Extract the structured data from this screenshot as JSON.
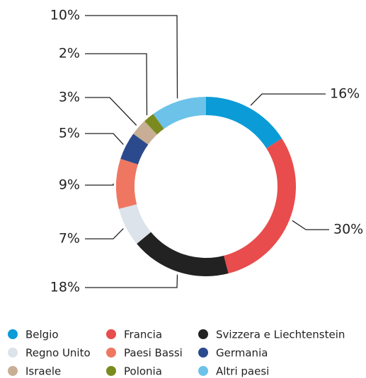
{
  "chart_data": {
    "type": "pie",
    "donut": true,
    "categories": [
      "Belgio",
      "Francia",
      "Svizzera e Liechtenstein",
      "Regno Unito",
      "Paesi Bassi",
      "Germania",
      "Israele",
      "Polonia",
      "Altri paesi"
    ],
    "values": [
      16,
      30,
      18,
      7,
      9,
      5,
      3,
      2,
      10
    ],
    "value_labels": [
      "16%",
      "30%",
      "18%",
      "7%",
      "9%",
      "5%",
      "3%",
      "2%",
      "10%"
    ],
    "colors": [
      "#0b9bd7",
      "#e84c4c",
      "#222222",
      "#dce3ea",
      "#ef7761",
      "#2b4a8e",
      "#c7ae94",
      "#7b8a1e",
      "#6cc2e8"
    ]
  }
}
